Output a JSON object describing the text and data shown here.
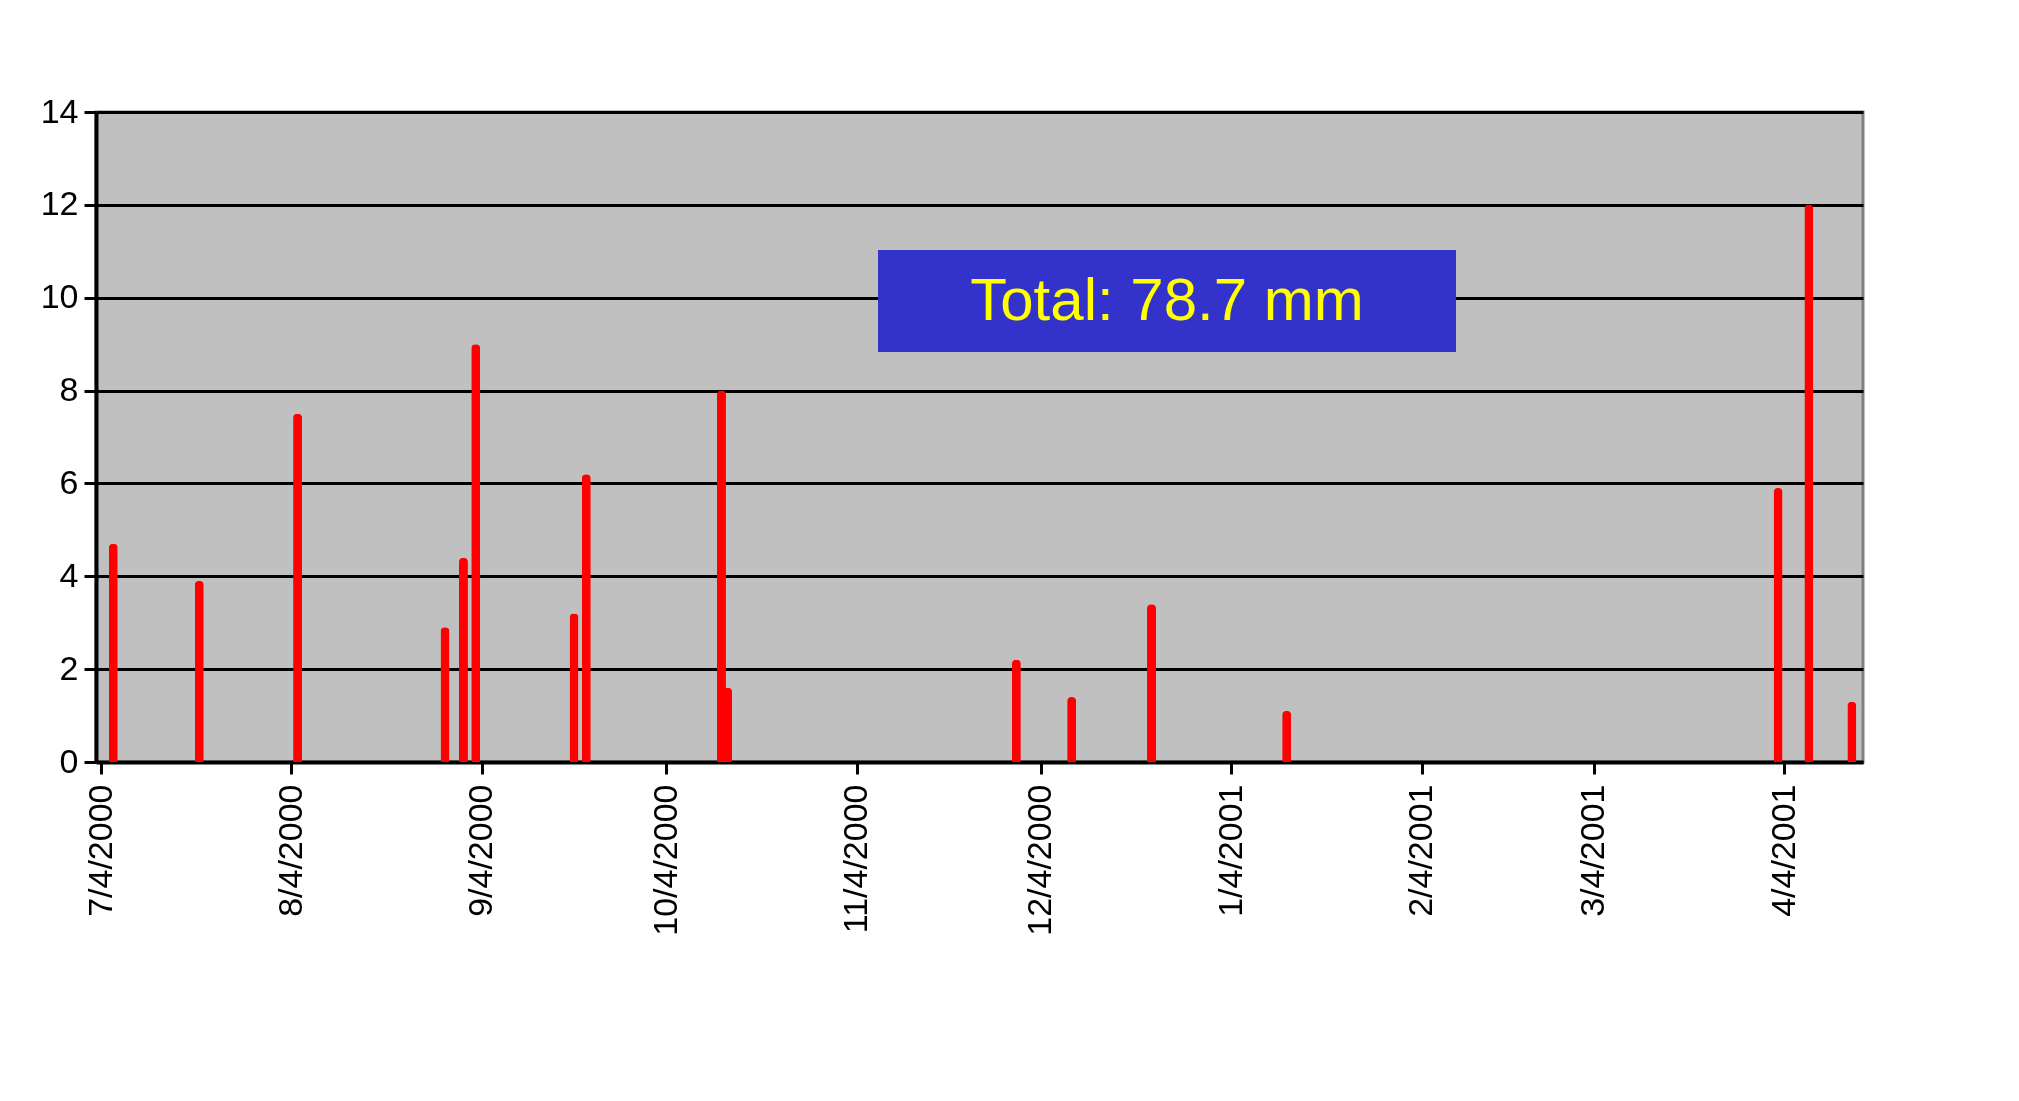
{
  "chart_data": {
    "type": "bar",
    "x": [
      "2000-07-06",
      "2000-07-20",
      "2000-08-05",
      "2000-08-29",
      "2000-09-01",
      "2000-09-03",
      "2000-09-19",
      "2000-09-21",
      "2000-10-13",
      "2000-10-14",
      "2000-11-30",
      "2000-12-09",
      "2000-12-22",
      "2001-01-13",
      "2001-04-03",
      "2001-04-08",
      "2001-04-15"
    ],
    "values": [
      4.7,
      3.9,
      7.5,
      2.9,
      4.4,
      9.0,
      3.2,
      6.2,
      8.0,
      1.6,
      2.2,
      1.4,
      3.4,
      1.1,
      5.9,
      12.0,
      1.3
    ],
    "color": "#ff0000",
    "xlim": [
      "2000-07-04",
      "2001-04-16"
    ],
    "xticks": [
      {
        "value": "2000-07-04",
        "label": "7/4/2000"
      },
      {
        "value": "2000-08-04",
        "label": "8/4/2000"
      },
      {
        "value": "2000-09-04",
        "label": "9/4/2000"
      },
      {
        "value": "2000-10-04",
        "label": "10/4/2000"
      },
      {
        "value": "2000-11-04",
        "label": "11/4/2000"
      },
      {
        "value": "2000-12-04",
        "label": "12/4/2000"
      },
      {
        "value": "2001-01-04",
        "label": "1/4/2001"
      },
      {
        "value": "2001-02-04",
        "label": "2/4/2001"
      },
      {
        "value": "2001-03-04",
        "label": "3/4/2001"
      },
      {
        "value": "2001-04-04",
        "label": "4/4/2001"
      }
    ],
    "ylim": [
      0,
      14
    ],
    "yticks": [
      0,
      2,
      4,
      6,
      8,
      10,
      12,
      14
    ],
    "grid": "y",
    "annotations": [
      "Total: 78.7 mm"
    ]
  }
}
